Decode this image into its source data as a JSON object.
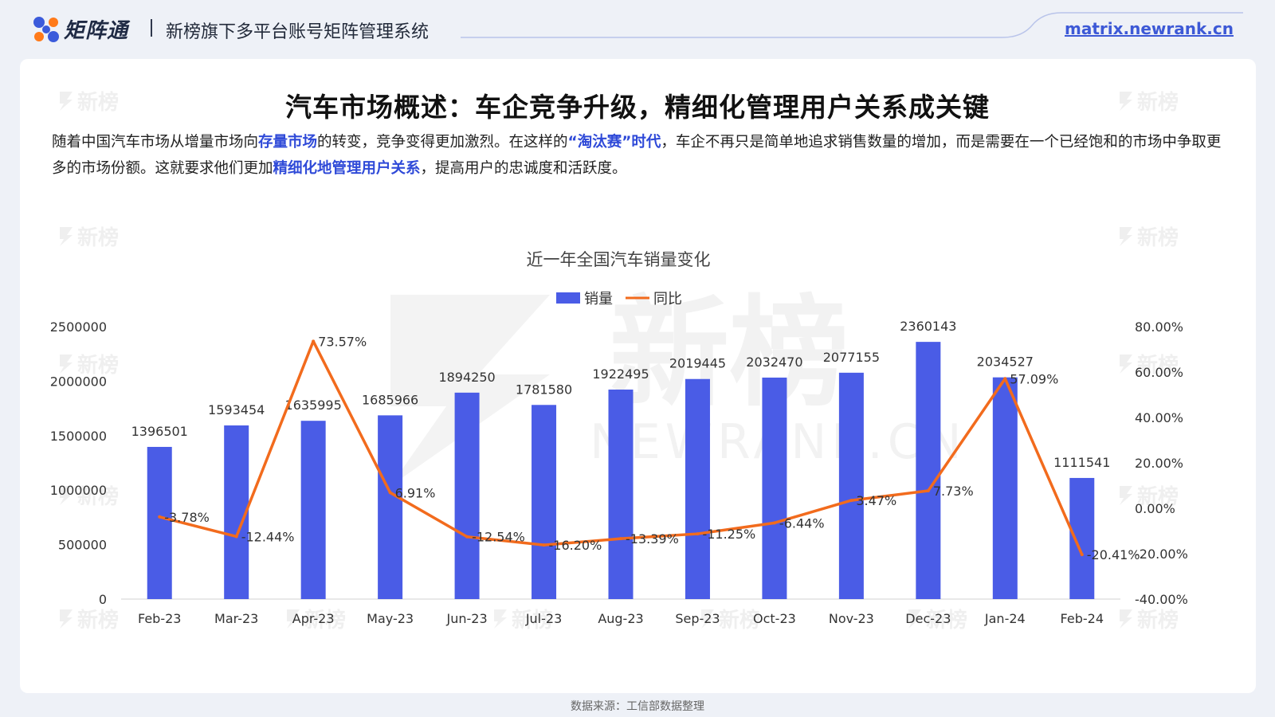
{
  "header": {
    "app_name": "矩阵通",
    "system_name": "新榜旗下多平台账号矩阵管理系统",
    "site_url": "matrix.newrank.cn"
  },
  "page": {
    "title": "汽车市场概述：车企竞争升级，精细化管理用户关系成关键",
    "intro": [
      {
        "text": "随着中国汽车市场从增量市场向",
        "highlight": false
      },
      {
        "text": "存量市场",
        "highlight": true
      },
      {
        "text": "的转变，竞争变得更加激烈。在这样的",
        "highlight": false
      },
      {
        "text": "“淘汰赛”时代",
        "highlight": true
      },
      {
        "text": "，车企不再只是简单地追求销售数量的增加，而是需要在一个已经饱和的市场中争取更多的市场份额。这就要求他们更加",
        "highlight": false
      },
      {
        "text": "精细化地管理用户关系",
        "highlight": true
      },
      {
        "text": "，提高用户的忠诚度和活跃度。",
        "highlight": false
      }
    ],
    "source_note": "数据来源：工信部数据整理"
  },
  "watermark": {
    "text": "新榜",
    "large_text": "新榜",
    "large_subtext": "NEWRANK.CN"
  },
  "colors": {
    "bar": "#4a5ce6",
    "line": "#f26b1d",
    "highlight": "#2f4ad8",
    "link": "#3d59d6"
  },
  "chart_data": {
    "type": "bar+line",
    "title": "近一年全国汽车销量变化",
    "legend_position": "top-center",
    "grid": false,
    "categories": [
      "Feb-23",
      "Mar-23",
      "Apr-23",
      "May-23",
      "Jun-23",
      "Jul-23",
      "Aug-23",
      "Sep-23",
      "Oct-23",
      "Nov-23",
      "Dec-23",
      "Jan-24",
      "Feb-24"
    ],
    "series": [
      {
        "name": "销量",
        "type": "bar",
        "axis": "left",
        "values": [
          1396501,
          1593454,
          1635995,
          1685966,
          1894250,
          1781580,
          1922495,
          2019445,
          2032470,
          2077155,
          2360143,
          2034527,
          1111541
        ],
        "labels": [
          "1396501",
          "1593454",
          "1635995",
          "1685966",
          "1894250",
          "1781580",
          "1922495",
          "2019445",
          "2032470",
          "2077155",
          "2360143",
          "2034527",
          "1111541"
        ]
      },
      {
        "name": "同比",
        "type": "line",
        "axis": "right",
        "values": [
          -3.78,
          -12.44,
          73.57,
          6.91,
          -12.54,
          -16.2,
          -13.39,
          -11.25,
          -6.44,
          3.47,
          7.73,
          57.09,
          -20.41
        ],
        "labels": [
          "-3.78%",
          "-12.44%",
          "73.57%",
          "6.91%",
          "-12.54%",
          "-16.20%",
          "-13.39%",
          "-11.25%",
          "-6.44%",
          "3.47%",
          "7.73%",
          "57.09%",
          "-20.41%"
        ]
      }
    ],
    "y_left": {
      "min": 0,
      "max": 2500000,
      "ticks": [
        "0",
        "500000",
        "1000000",
        "1500000",
        "2000000",
        "2500000"
      ]
    },
    "y_right": {
      "min": -40,
      "max": 80,
      "ticks": [
        "-40.00%",
        "-20.00%",
        "0.00%",
        "20.00%",
        "40.00%",
        "60.00%",
        "80.00%"
      ]
    }
  }
}
